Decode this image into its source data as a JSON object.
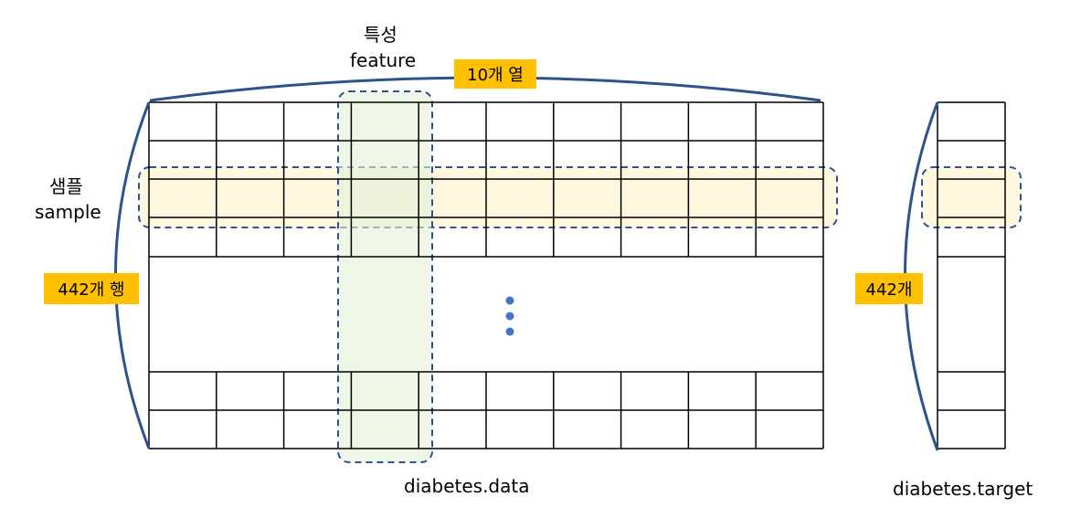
{
  "feature": {
    "label_ko": "특성",
    "label_en": "feature"
  },
  "sample": {
    "label_ko": "샘플",
    "label_en": "sample"
  },
  "badges": {
    "columns": "10개 열",
    "rows": "442개 행",
    "target_rows": "442개"
  },
  "captions": {
    "data": "diabetes.data",
    "target": "diabetes.target"
  },
  "data_grid": {
    "columns": 10,
    "rows_shown_top": 4,
    "rows_shown_bottom": 2,
    "highlight_row": 3,
    "highlight_col": 4
  },
  "target_grid": {
    "columns": 1
  },
  "colors": {
    "grid": "#000000",
    "brace": "#2f528f",
    "dash": "#2f528f",
    "dots": "#4472c4",
    "row_fill": "#fff2cc",
    "col_fill": "#e2f0d9",
    "badge": "#ffc000"
  }
}
